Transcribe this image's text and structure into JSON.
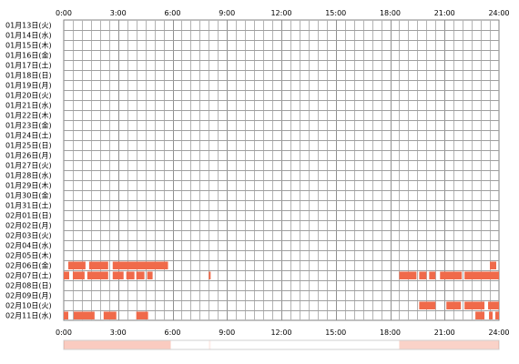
{
  "chart_data": {
    "type": "timeline",
    "xlim": [
      0,
      24
    ],
    "x_ticks": [
      "0:00",
      "3:00",
      "6:00",
      "9:00",
      "12:00",
      "15:00",
      "18:00",
      "21:00",
      "24:00"
    ],
    "rows": [
      "01月13日(火)",
      "01月14日(水)",
      "01月15日(木)",
      "01月16日(金)",
      "01月17日(土)",
      "01月18日(日)",
      "01月19日(月)",
      "01月20日(火)",
      "01月21日(水)",
      "01月22日(木)",
      "01月23日(金)",
      "01月24日(土)",
      "01月25日(日)",
      "01月26日(月)",
      "01月27日(火)",
      "01月28日(水)",
      "01月29日(木)",
      "01月30日(金)",
      "01月31日(土)",
      "02月01日(日)",
      "02月02日(月)",
      "02月03日(火)",
      "02月04日(水)",
      "02月05日(木)",
      "02月06日(金)",
      "02月07日(土)",
      "02月08日(日)",
      "02月09日(月)",
      "02月10日(火)",
      "02月11日(水)"
    ],
    "bar_color": "#f06a4a",
    "grid": true,
    "segments": [
      {
        "row": 24,
        "start": 0.25,
        "end": 1.2
      },
      {
        "row": 24,
        "start": 1.4,
        "end": 2.45
      },
      {
        "row": 24,
        "start": 2.7,
        "end": 5.75
      },
      {
        "row": 24,
        "start": 23.5,
        "end": 23.85
      },
      {
        "row": 25,
        "start": 0.0,
        "end": 0.3
      },
      {
        "row": 25,
        "start": 0.5,
        "end": 1.15
      },
      {
        "row": 25,
        "start": 1.3,
        "end": 2.45
      },
      {
        "row": 25,
        "start": 2.7,
        "end": 3.3
      },
      {
        "row": 25,
        "start": 3.45,
        "end": 3.9
      },
      {
        "row": 25,
        "start": 4.0,
        "end": 4.45
      },
      {
        "row": 25,
        "start": 4.6,
        "end": 4.9
      },
      {
        "row": 25,
        "start": 8.0,
        "end": 8.1
      },
      {
        "row": 25,
        "start": 18.5,
        "end": 19.45
      },
      {
        "row": 25,
        "start": 19.6,
        "end": 20.0
      },
      {
        "row": 25,
        "start": 20.15,
        "end": 20.5
      },
      {
        "row": 25,
        "start": 20.75,
        "end": 21.95
      },
      {
        "row": 25,
        "start": 22.1,
        "end": 24.0
      },
      {
        "row": 28,
        "start": 19.6,
        "end": 20.5
      },
      {
        "row": 28,
        "start": 21.1,
        "end": 21.9
      },
      {
        "row": 28,
        "start": 22.1,
        "end": 23.2
      },
      {
        "row": 28,
        "start": 23.4,
        "end": 24.0
      },
      {
        "row": 29,
        "start": 0.0,
        "end": 0.25
      },
      {
        "row": 29,
        "start": 0.55,
        "end": 1.7
      },
      {
        "row": 29,
        "start": 2.2,
        "end": 2.9
      },
      {
        "row": 29,
        "start": 4.0,
        "end": 4.65
      },
      {
        "row": 29,
        "start": 22.7,
        "end": 23.2
      },
      {
        "row": 29,
        "start": 23.45,
        "end": 23.65
      },
      {
        "row": 29,
        "start": 23.8,
        "end": 24.0
      }
    ],
    "summary_strip": {
      "color": "#f06a4a",
      "intensity": [
        {
          "start": 0.0,
          "end": 5.9,
          "level": 0.35
        },
        {
          "start": 8.0,
          "end": 8.1,
          "level": 0.12
        },
        {
          "start": 18.5,
          "end": 24.0,
          "level": 0.3
        }
      ]
    }
  }
}
